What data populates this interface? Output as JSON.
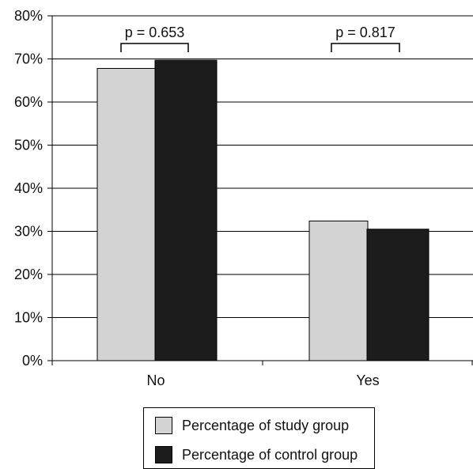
{
  "chart_data": {
    "type": "bar",
    "categories": [
      "No",
      "Yes"
    ],
    "series": [
      {
        "name": "Percentage of study group",
        "values": [
          67.8,
          32.4
        ],
        "color": "#d3d3d3"
      },
      {
        "name": "Percentage of control group",
        "values": [
          69.7,
          30.5
        ],
        "color": "#1c1c1c"
      }
    ],
    "ylim": [
      0,
      80
    ],
    "yticks": [
      "0%",
      "10%",
      "20%",
      "30%",
      "40%",
      "50%",
      "60%",
      "70%",
      "80%"
    ],
    "grid": true,
    "legend_position": "bottom",
    "annotations": [
      "p = 0.653",
      "p = 0.817"
    ]
  }
}
